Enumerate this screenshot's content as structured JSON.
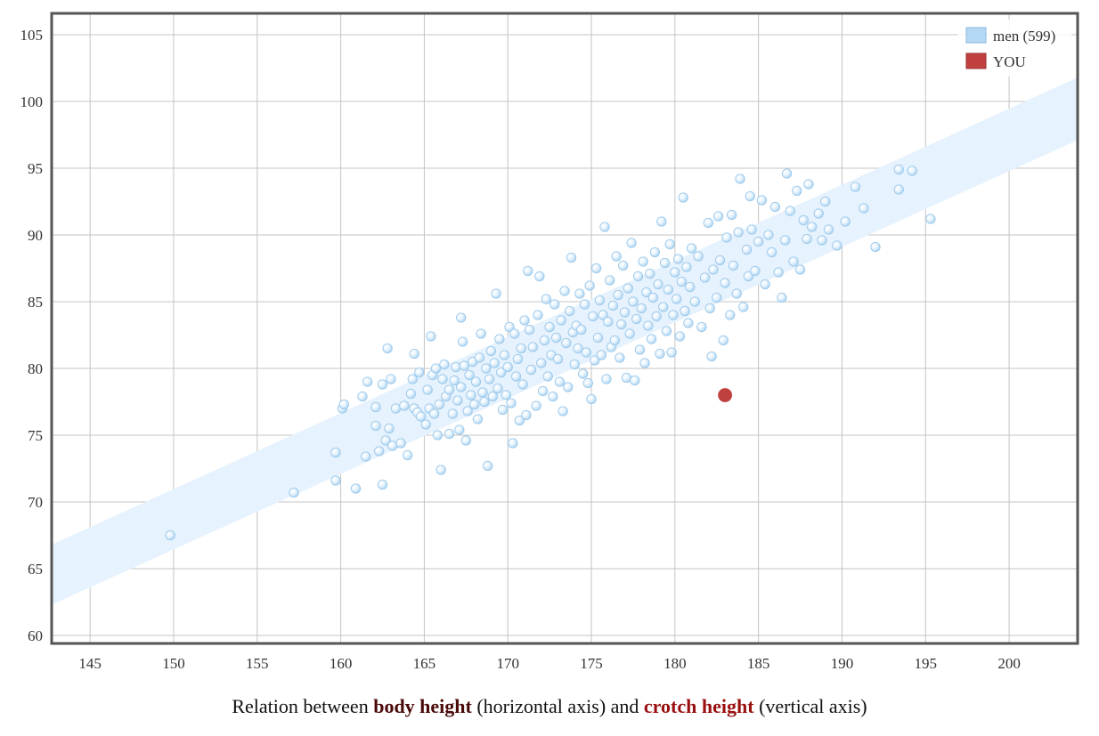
{
  "chart_data": {
    "type": "scatter",
    "xlim": [
      142.7,
      204.1
    ],
    "ylim": [
      59.4,
      106.6
    ],
    "xticks": [
      145,
      150,
      155,
      160,
      165,
      170,
      175,
      180,
      185,
      190,
      195,
      200
    ],
    "yticks": [
      60,
      65,
      70,
      75,
      80,
      85,
      90,
      95,
      100,
      105
    ],
    "grid": true,
    "legend_position": "top-right",
    "band": {
      "lower": [
        [
          142.7,
          62.3
        ],
        [
          204.1,
          97.1
        ]
      ],
      "upper": [
        [
          142.7,
          66.8
        ],
        [
          204.1,
          101.8
        ]
      ],
      "color": "#e6f2fd"
    },
    "series": [
      {
        "name": "men (599)",
        "color": "#b5d9f5",
        "points": [
          [
            149.8,
            67.5
          ],
          [
            157.2,
            70.7
          ],
          [
            159.7,
            73.7
          ],
          [
            159.7,
            71.6
          ],
          [
            160.1,
            77.0
          ],
          [
            160.2,
            77.3
          ],
          [
            160.9,
            71.0
          ],
          [
            161.3,
            77.9
          ],
          [
            161.5,
            73.4
          ],
          [
            161.6,
            79.0
          ],
          [
            162.1,
            75.7
          ],
          [
            162.1,
            77.1
          ],
          [
            162.3,
            73.8
          ],
          [
            162.5,
            78.8
          ],
          [
            162.5,
            71.3
          ],
          [
            162.7,
            74.6
          ],
          [
            162.8,
            81.5
          ],
          [
            162.9,
            75.5
          ],
          [
            163.0,
            79.2
          ],
          [
            163.1,
            74.2
          ],
          [
            163.3,
            77.0
          ],
          [
            163.6,
            74.4
          ],
          [
            163.8,
            77.2
          ],
          [
            164.0,
            73.5
          ],
          [
            164.2,
            78.1
          ],
          [
            164.3,
            79.2
          ],
          [
            164.4,
            81.1
          ],
          [
            164.4,
            77.0
          ],
          [
            164.6,
            76.7
          ],
          [
            164.7,
            79.7
          ],
          [
            164.8,
            76.4
          ],
          [
            165.1,
            75.8
          ],
          [
            165.2,
            78.4
          ],
          [
            165.3,
            77.0
          ],
          [
            165.4,
            82.4
          ],
          [
            165.5,
            79.5
          ],
          [
            165.6,
            76.6
          ],
          [
            165.7,
            80.0
          ],
          [
            165.8,
            75.0
          ],
          [
            165.9,
            77.3
          ],
          [
            166.0,
            72.4
          ],
          [
            166.1,
            79.2
          ],
          [
            166.2,
            80.3
          ],
          [
            166.3,
            77.9
          ],
          [
            166.5,
            75.1
          ],
          [
            166.5,
            78.4
          ],
          [
            166.7,
            76.6
          ],
          [
            166.8,
            79.1
          ],
          [
            166.9,
            80.1
          ],
          [
            167.0,
            77.6
          ],
          [
            167.1,
            75.4
          ],
          [
            167.2,
            83.8
          ],
          [
            167.2,
            78.6
          ],
          [
            167.3,
            82.0
          ],
          [
            167.4,
            80.2
          ],
          [
            167.5,
            74.6
          ],
          [
            167.6,
            76.8
          ],
          [
            167.7,
            79.5
          ],
          [
            167.8,
            78.0
          ],
          [
            167.9,
            80.5
          ],
          [
            168.0,
            77.3
          ],
          [
            168.1,
            79.0
          ],
          [
            168.2,
            76.2
          ],
          [
            168.3,
            80.8
          ],
          [
            168.4,
            82.6
          ],
          [
            168.5,
            78.2
          ],
          [
            168.6,
            77.5
          ],
          [
            168.7,
            80.0
          ],
          [
            168.8,
            72.7
          ],
          [
            168.9,
            79.2
          ],
          [
            169.0,
            81.3
          ],
          [
            169.1,
            77.9
          ],
          [
            169.2,
            80.4
          ],
          [
            169.3,
            85.6
          ],
          [
            169.4,
            78.5
          ],
          [
            169.5,
            82.2
          ],
          [
            169.6,
            79.7
          ],
          [
            169.7,
            76.9
          ],
          [
            169.8,
            81.0
          ],
          [
            169.9,
            78.0
          ],
          [
            170.0,
            80.1
          ],
          [
            170.1,
            83.1
          ],
          [
            170.2,
            77.4
          ],
          [
            170.3,
            74.4
          ],
          [
            170.4,
            82.6
          ],
          [
            170.5,
            79.4
          ],
          [
            170.6,
            80.7
          ],
          [
            170.7,
            76.1
          ],
          [
            170.8,
            81.5
          ],
          [
            170.9,
            78.8
          ],
          [
            171.0,
            83.6
          ],
          [
            171.1,
            76.5
          ],
          [
            171.2,
            87.3
          ],
          [
            171.3,
            82.9
          ],
          [
            171.4,
            79.9
          ],
          [
            171.5,
            81.6
          ],
          [
            171.7,
            77.2
          ],
          [
            171.8,
            84.0
          ],
          [
            171.9,
            86.9
          ],
          [
            172.0,
            80.4
          ],
          [
            172.1,
            78.3
          ],
          [
            172.2,
            82.1
          ],
          [
            172.3,
            85.2
          ],
          [
            172.4,
            79.4
          ],
          [
            172.5,
            83.1
          ],
          [
            172.6,
            81.0
          ],
          [
            172.7,
            77.9
          ],
          [
            172.8,
            84.8
          ],
          [
            172.9,
            82.3
          ],
          [
            173.0,
            80.7
          ],
          [
            173.1,
            79.0
          ],
          [
            173.2,
            83.6
          ],
          [
            173.3,
            76.8
          ],
          [
            173.4,
            85.8
          ],
          [
            173.5,
            81.9
          ],
          [
            173.6,
            78.6
          ],
          [
            173.7,
            84.3
          ],
          [
            173.8,
            88.3
          ],
          [
            173.9,
            82.7
          ],
          [
            174.0,
            80.3
          ],
          [
            174.1,
            83.2
          ],
          [
            174.2,
            81.5
          ],
          [
            174.3,
            85.6
          ],
          [
            174.4,
            82.9
          ],
          [
            174.5,
            79.6
          ],
          [
            174.6,
            84.8
          ],
          [
            174.7,
            81.2
          ],
          [
            174.8,
            78.9
          ],
          [
            174.9,
            86.2
          ],
          [
            175.0,
            77.7
          ],
          [
            175.1,
            83.9
          ],
          [
            175.2,
            80.6
          ],
          [
            175.3,
            87.5
          ],
          [
            175.4,
            82.3
          ],
          [
            175.5,
            85.1
          ],
          [
            175.6,
            81.0
          ],
          [
            175.7,
            84.0
          ],
          [
            175.8,
            90.6
          ],
          [
            175.9,
            79.2
          ],
          [
            176.0,
            83.5
          ],
          [
            176.1,
            86.6
          ],
          [
            176.2,
            81.6
          ],
          [
            176.3,
            84.7
          ],
          [
            176.4,
            82.1
          ],
          [
            176.5,
            88.4
          ],
          [
            176.6,
            85.5
          ],
          [
            176.7,
            80.8
          ],
          [
            176.8,
            83.3
          ],
          [
            176.9,
            87.7
          ],
          [
            177.0,
            84.2
          ],
          [
            177.1,
            79.3
          ],
          [
            177.2,
            86.0
          ],
          [
            177.3,
            82.6
          ],
          [
            177.4,
            89.4
          ],
          [
            177.5,
            85.0
          ],
          [
            177.6,
            79.1
          ],
          [
            177.7,
            83.7
          ],
          [
            177.8,
            86.9
          ],
          [
            177.9,
            81.4
          ],
          [
            178.0,
            84.5
          ],
          [
            178.1,
            88.0
          ],
          [
            178.2,
            80.4
          ],
          [
            178.3,
            85.7
          ],
          [
            178.4,
            83.2
          ],
          [
            178.5,
            87.1
          ],
          [
            178.6,
            82.2
          ],
          [
            178.7,
            85.3
          ],
          [
            178.8,
            88.7
          ],
          [
            178.9,
            83.9
          ],
          [
            179.0,
            86.3
          ],
          [
            179.1,
            81.1
          ],
          [
            179.2,
            91.0
          ],
          [
            179.3,
            84.6
          ],
          [
            179.4,
            87.9
          ],
          [
            179.5,
            82.8
          ],
          [
            179.6,
            85.9
          ],
          [
            179.7,
            89.3
          ],
          [
            179.8,
            81.2
          ],
          [
            179.9,
            84.0
          ],
          [
            180.0,
            87.2
          ],
          [
            180.1,
            85.2
          ],
          [
            180.2,
            88.2
          ],
          [
            180.3,
            82.4
          ],
          [
            180.4,
            86.5
          ],
          [
            180.5,
            92.8
          ],
          [
            180.6,
            84.3
          ],
          [
            180.7,
            87.6
          ],
          [
            180.8,
            83.4
          ],
          [
            180.9,
            86.1
          ],
          [
            181.0,
            89.0
          ],
          [
            181.2,
            85.0
          ],
          [
            181.4,
            88.4
          ],
          [
            181.6,
            83.1
          ],
          [
            181.8,
            86.8
          ],
          [
            182.0,
            90.9
          ],
          [
            182.1,
            84.5
          ],
          [
            182.2,
            80.9
          ],
          [
            182.3,
            87.4
          ],
          [
            182.5,
            85.3
          ],
          [
            182.6,
            91.4
          ],
          [
            182.7,
            88.1
          ],
          [
            182.9,
            82.1
          ],
          [
            183.0,
            86.4
          ],
          [
            183.1,
            89.8
          ],
          [
            183.3,
            84.0
          ],
          [
            183.4,
            91.5
          ],
          [
            183.5,
            87.7
          ],
          [
            183.7,
            85.6
          ],
          [
            183.8,
            90.2
          ],
          [
            183.9,
            94.2
          ],
          [
            184.1,
            84.6
          ],
          [
            184.3,
            88.9
          ],
          [
            184.4,
            86.9
          ],
          [
            184.5,
            92.9
          ],
          [
            184.6,
            90.4
          ],
          [
            184.8,
            87.3
          ],
          [
            185.0,
            89.5
          ],
          [
            185.2,
            92.6
          ],
          [
            185.4,
            86.3
          ],
          [
            185.6,
            90.0
          ],
          [
            185.8,
            88.7
          ],
          [
            186.0,
            92.1
          ],
          [
            186.2,
            87.2
          ],
          [
            186.4,
            85.3
          ],
          [
            186.6,
            89.6
          ],
          [
            186.7,
            94.6
          ],
          [
            186.9,
            91.8
          ],
          [
            187.1,
            88.0
          ],
          [
            187.3,
            93.3
          ],
          [
            187.5,
            87.4
          ],
          [
            187.7,
            91.1
          ],
          [
            187.9,
            89.7
          ],
          [
            188.0,
            93.8
          ],
          [
            188.2,
            90.6
          ],
          [
            188.6,
            91.6
          ],
          [
            188.8,
            89.6
          ],
          [
            189.0,
            92.5
          ],
          [
            189.2,
            90.4
          ],
          [
            189.7,
            89.2
          ],
          [
            190.2,
            91.0
          ],
          [
            190.8,
            93.6
          ],
          [
            191.3,
            92.0
          ],
          [
            192.0,
            89.1
          ],
          [
            193.4,
            94.9
          ],
          [
            193.4,
            93.4
          ],
          [
            194.2,
            94.8
          ],
          [
            195.3,
            91.2
          ]
        ]
      },
      {
        "name": "YOU",
        "color": "#c0403f",
        "points": [
          [
            183.0,
            78.0
          ]
        ]
      }
    ]
  },
  "caption": {
    "prefix": "Relation between ",
    "x_term": "body height",
    "middle": " (horizontal axis) and ",
    "y_term": "crotch height",
    "suffix": " (vertical axis)"
  }
}
